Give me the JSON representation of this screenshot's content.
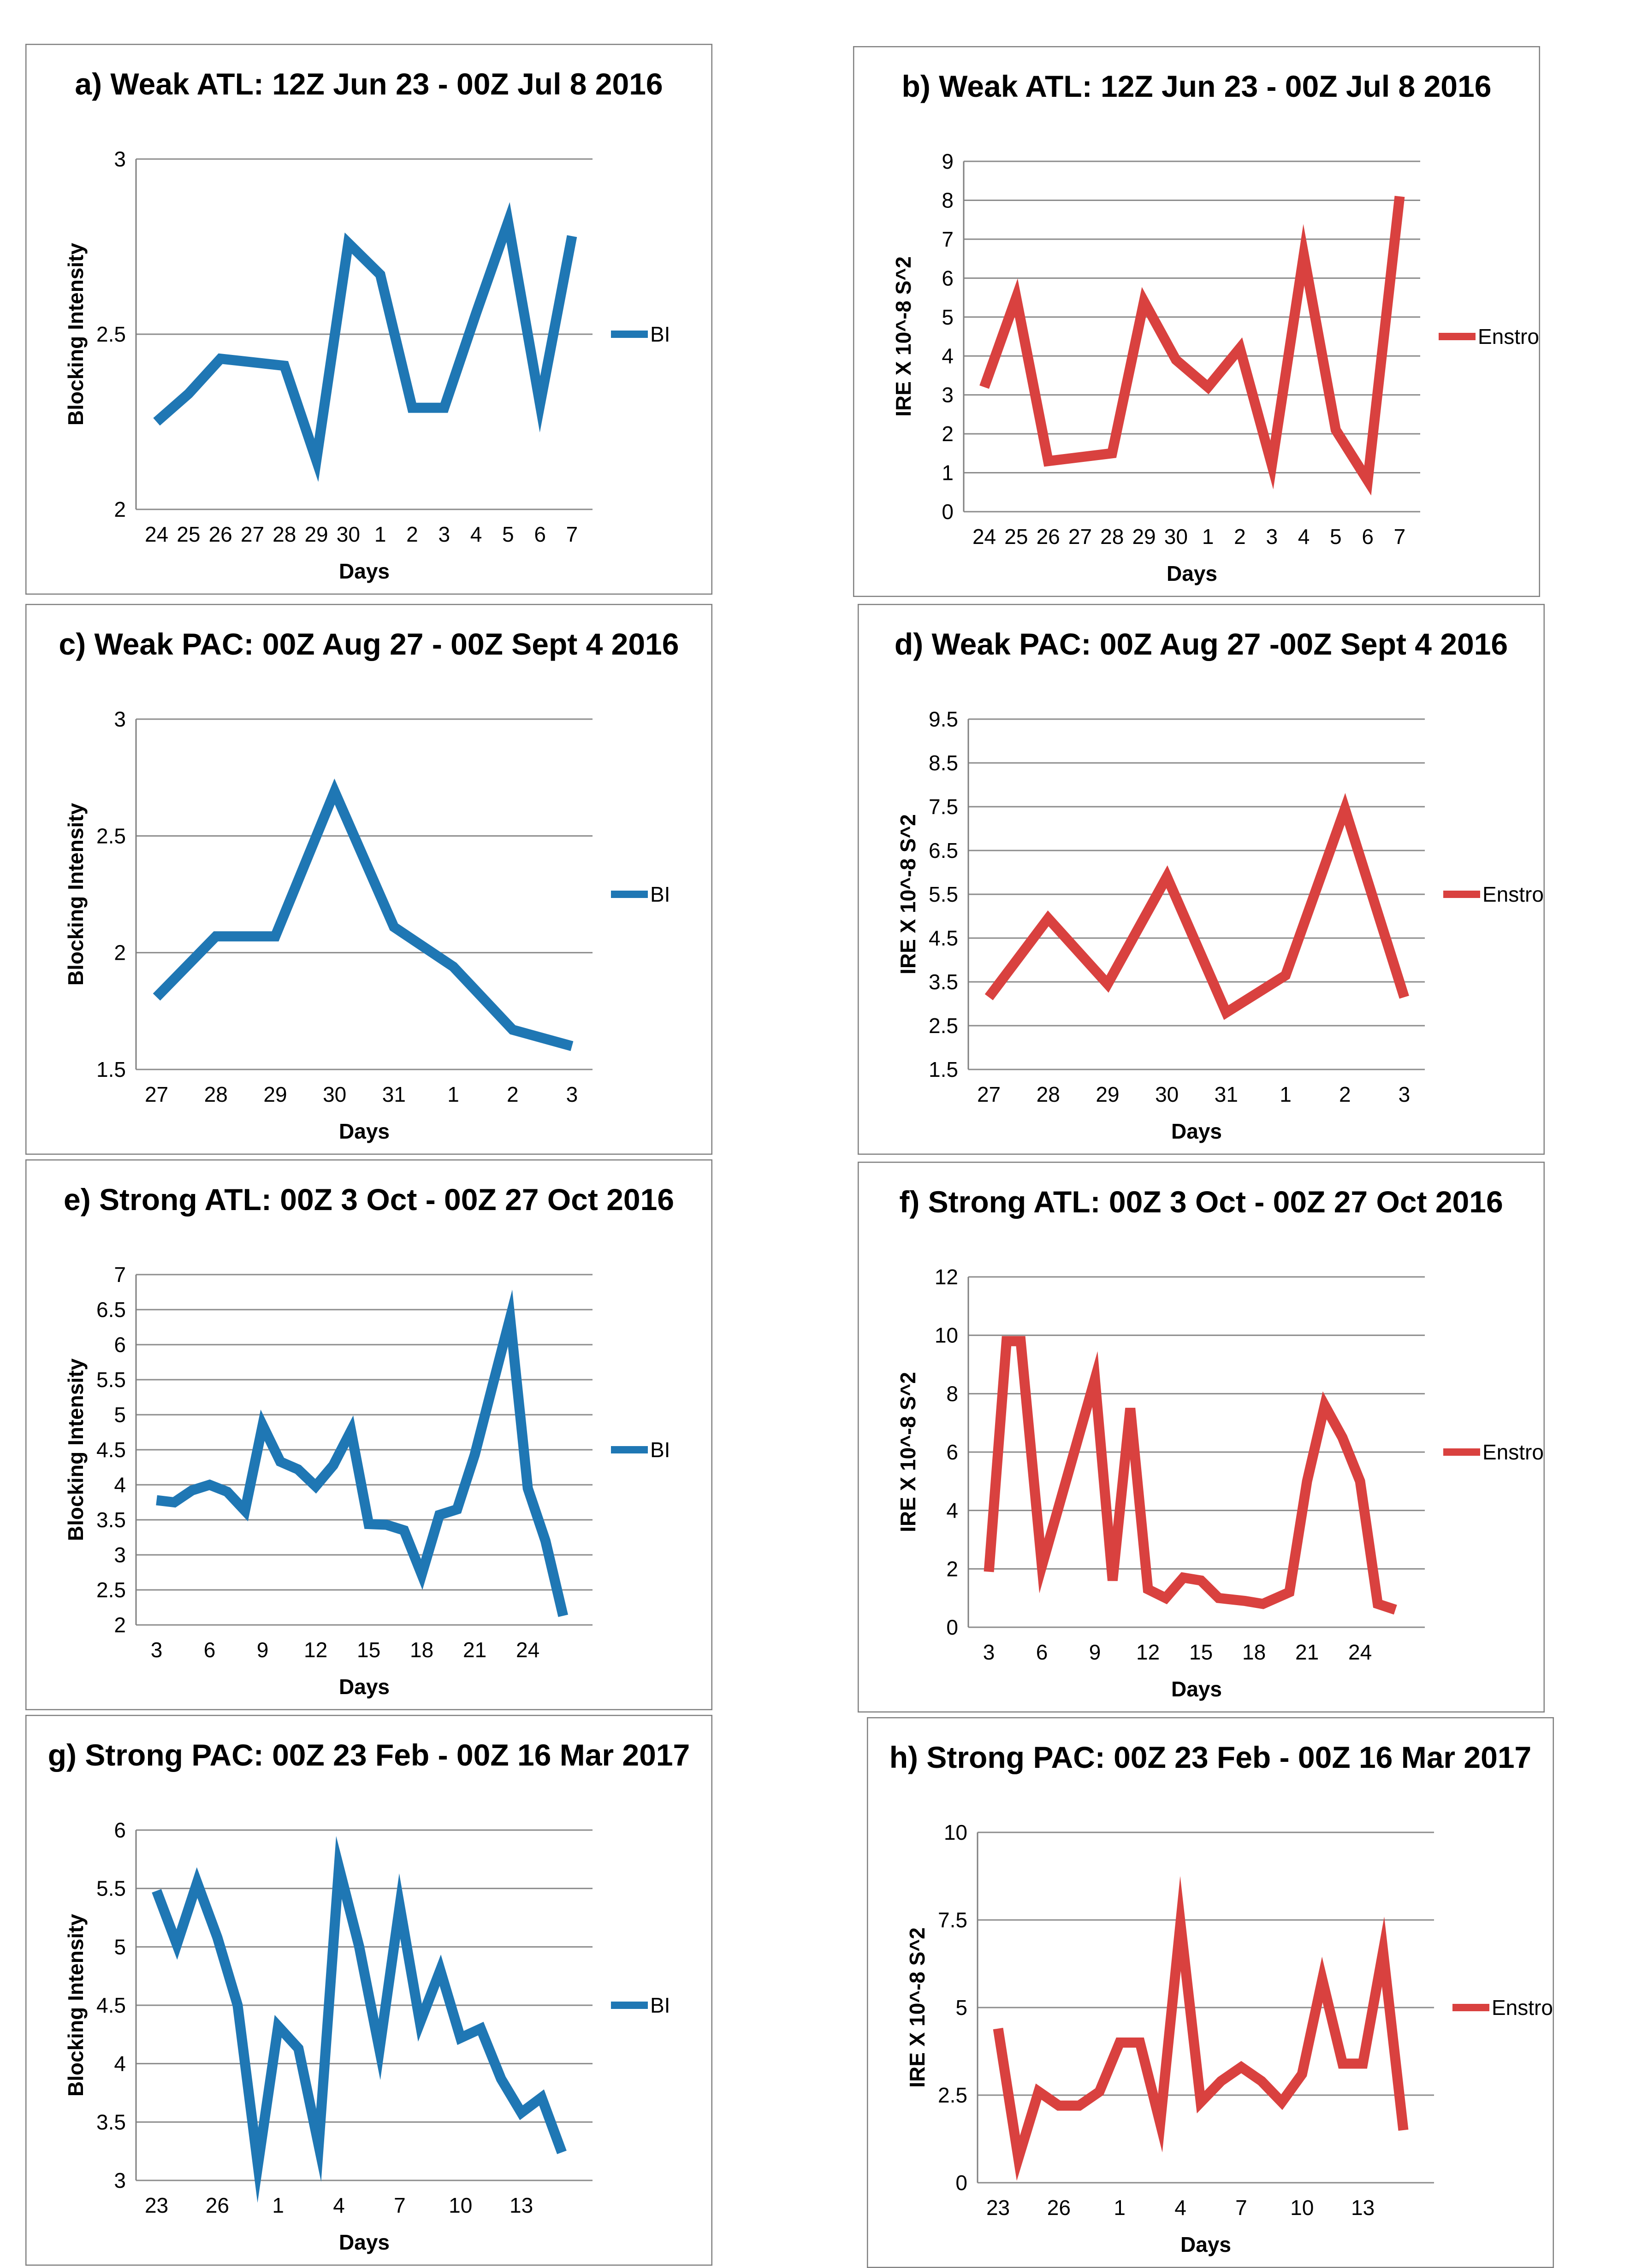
{
  "colors": {
    "bi": "#1f77b4",
    "enstrophy": "#d9413f",
    "grid": "#8c8c8c",
    "axis": "#7f7f7f"
  },
  "chart_data": [
    {
      "id": "a",
      "type": "line",
      "title": "a) Weak ATL: 12Z Jun 23 - 00Z Jul 8 2016",
      "xlabel": "Days",
      "ylabel": "Blocking Intensity",
      "ylim": [
        2,
        3
      ],
      "yticks": [
        "2",
        "2.5",
        "3"
      ],
      "categories": [
        "24",
        "25",
        "26",
        "27",
        "28",
        "29",
        "30",
        "1",
        "2",
        "3",
        "4",
        "5",
        "6",
        "7"
      ],
      "x_values": [
        0,
        1,
        2,
        3,
        4,
        5,
        6,
        7,
        8,
        9,
        10,
        11,
        12,
        13
      ],
      "series": [
        {
          "name": "BI",
          "color": "#1f77b4",
          "x": [
            0,
            1,
            2,
            4,
            5,
            6,
            7,
            8,
            9,
            10,
            11,
            12,
            13
          ],
          "values": [
            2.25,
            2.33,
            2.43,
            2.41,
            2.14,
            2.76,
            2.67,
            2.29,
            2.29,
            2.56,
            2.82,
            2.3,
            2.78
          ]
        }
      ]
    },
    {
      "id": "b",
      "type": "line",
      "title": "b) Weak ATL: 12Z Jun 23 - 00Z Jul 8 2016",
      "xlabel": "Days",
      "ylabel": "IRE  X 10^-8 S^2",
      "ylim": [
        0,
        9
      ],
      "yticks": [
        "0",
        "1",
        "2",
        "3",
        "4",
        "5",
        "6",
        "7",
        "8",
        "9"
      ],
      "categories": [
        "24",
        "25",
        "26",
        "27",
        "28",
        "29",
        "30",
        "1",
        "2",
        "3",
        "4",
        "5",
        "6",
        "7"
      ],
      "x_values": [
        0,
        1,
        2,
        3,
        4,
        5,
        6,
        7,
        8,
        9,
        10,
        11,
        12,
        13
      ],
      "series": [
        {
          "name": "Enstrophy",
          "color": "#d9413f",
          "x": [
            0,
            1,
            2,
            4,
            5,
            6,
            7,
            8,
            9,
            10,
            11,
            12,
            13
          ],
          "values": [
            3.2,
            5.5,
            1.3,
            1.5,
            5.4,
            3.9,
            3.2,
            4.2,
            1.2,
            6.6,
            2.1,
            0.8,
            8.1
          ]
        }
      ]
    },
    {
      "id": "c",
      "type": "line",
      "title": "c) Weak PAC: 00Z Aug 27 - 00Z Sept 4 2016",
      "xlabel": "Days",
      "ylabel": "Blocking Intensity",
      "ylim": [
        1.5,
        3
      ],
      "yticks": [
        "1.5",
        "2",
        "2.5",
        "3"
      ],
      "categories": [
        "27",
        "28",
        "29",
        "30",
        "31",
        "1",
        "2",
        "3"
      ],
      "x_values": [
        0,
        1,
        2,
        3,
        4,
        5,
        6,
        7
      ],
      "series": [
        {
          "name": "BI",
          "color": "#1f77b4",
          "x": [
            0,
            1,
            2,
            3,
            4,
            5,
            6,
            7
          ],
          "values": [
            1.81,
            2.07,
            2.07,
            2.69,
            2.11,
            1.94,
            1.67,
            1.6
          ]
        }
      ]
    },
    {
      "id": "d",
      "type": "line",
      "title": "d) Weak PAC: 00Z Aug 27 -00Z Sept 4 2016",
      "xlabel": "Days",
      "ylabel": "IRE  X 10^-8 S^2",
      "ylim": [
        1.5,
        9.5
      ],
      "yticks": [
        "1.5",
        "2.5",
        "3.5",
        "4.5",
        "5.5",
        "6.5",
        "7.5",
        "8.5",
        "9.5"
      ],
      "categories": [
        "27",
        "28",
        "29",
        "30",
        "31",
        "1",
        "2",
        "3"
      ],
      "x_values": [
        0,
        1,
        2,
        3,
        4,
        5,
        6,
        7
      ],
      "series": [
        {
          "name": "Enstrophy",
          "color": "#d9413f",
          "x": [
            0,
            1,
            2,
            3,
            4,
            5,
            6,
            7
          ],
          "values": [
            3.15,
            4.95,
            3.45,
            5.9,
            2.8,
            3.65,
            7.45,
            3.15
          ]
        }
      ]
    },
    {
      "id": "e",
      "type": "line",
      "title": "e) Strong ATL: 00Z 3 Oct - 00Z 27 Oct 2016",
      "xlabel": "Days",
      "ylabel": "Blocking Intensity",
      "ylim": [
        2,
        7
      ],
      "yticks": [
        "2",
        "2.5",
        "3",
        "3.5",
        "4",
        "4.5",
        "5",
        "5.5",
        "6",
        "6.5",
        "7"
      ],
      "categories": [
        "3",
        "6",
        "9",
        "12",
        "15",
        "18",
        "21",
        "24"
      ],
      "x_values": [
        3,
        6,
        9,
        12,
        15,
        18,
        21,
        24
      ],
      "x_range": [
        3,
        26.5
      ],
      "series": [
        {
          "name": "BI",
          "color": "#1f77b4",
          "x": [
            3,
            4,
            5,
            6,
            7,
            8,
            9,
            10,
            11,
            12,
            13,
            14,
            15,
            16,
            17,
            18,
            19,
            20,
            21,
            22,
            23,
            24,
            25,
            26
          ],
          "values": [
            3.78,
            3.75,
            3.92,
            4.0,
            3.9,
            3.63,
            4.85,
            4.33,
            4.22,
            3.98,
            4.28,
            4.77,
            3.44,
            3.43,
            3.35,
            2.72,
            3.57,
            3.65,
            4.43,
            5.41,
            6.38,
            3.95,
            3.2,
            2.13
          ]
        }
      ]
    },
    {
      "id": "f",
      "type": "line",
      "title": "f) Strong ATL: 00Z 3 Oct - 00Z 27 Oct 2016",
      "xlabel": "Days",
      "ylabel": "IRE  X 10^-8 S^2",
      "ylim": [
        0,
        12
      ],
      "yticks": [
        "0",
        "2",
        "4",
        "6",
        "8",
        "10",
        "12"
      ],
      "categories": [
        "3",
        "6",
        "9",
        "12",
        "15",
        "18",
        "21",
        "24"
      ],
      "x_values": [
        3,
        6,
        9,
        12,
        15,
        18,
        21,
        24
      ],
      "x_range": [
        3,
        26.5
      ],
      "series": [
        {
          "name": "Enstrophy",
          "color": "#d9413f",
          "x": [
            3,
            4,
            4.8,
            6,
            7.5,
            9,
            10,
            11,
            12,
            13,
            14,
            15,
            16,
            17.5,
            18.5,
            20,
            21,
            22,
            23,
            24,
            25,
            26
          ],
          "values": [
            1.9,
            9.8,
            9.8,
            2.1,
            5.3,
            8.5,
            1.6,
            7.5,
            1.3,
            1.0,
            1.7,
            1.6,
            1.0,
            0.9,
            0.8,
            1.2,
            5.0,
            7.6,
            6.5,
            5.0,
            0.8,
            0.6
          ]
        }
      ]
    },
    {
      "id": "g",
      "type": "line",
      "title": "g) Strong PAC: 00Z 23 Feb - 00Z 16 Mar 2017",
      "xlabel": "Days",
      "ylabel": "Blocking Intensity",
      "ylim": [
        3,
        6
      ],
      "yticks": [
        "3",
        "3.5",
        "4",
        "4.5",
        "5",
        "5.5",
        "6"
      ],
      "categories": [
        "23",
        "26",
        "1",
        "4",
        "7",
        "10",
        "13"
      ],
      "x_values": [
        0,
        3,
        6,
        9,
        12,
        15,
        18
      ],
      "x_range": [
        0,
        20.5
      ],
      "series": [
        {
          "name": "BI",
          "color": "#1f77b4",
          "x": [
            0,
            1,
            2,
            3,
            4,
            5,
            6,
            7,
            8,
            9,
            10,
            11,
            12,
            13,
            14,
            15,
            16,
            17,
            18,
            19,
            20
          ],
          "values": [
            5.48,
            5.02,
            5.55,
            5.08,
            4.5,
            3.13,
            4.32,
            4.13,
            3.3,
            5.68,
            5.0,
            4.12,
            5.35,
            4.35,
            4.8,
            4.22,
            4.3,
            3.87,
            3.58,
            3.71,
            3.24
          ]
        }
      ]
    },
    {
      "id": "h",
      "type": "line",
      "title": "h) Strong PAC: 00Z 23 Feb - 00Z 16 Mar 2017",
      "xlabel": "Days",
      "ylabel": "IRE  X 10^-8 S^2",
      "ylim": [
        0,
        10
      ],
      "yticks": [
        "0",
        "2.5",
        "5",
        "7.5",
        "10"
      ],
      "categories": [
        "23",
        "26",
        "1",
        "4",
        "7",
        "10",
        "13"
      ],
      "x_values": [
        0,
        3,
        6,
        9,
        12,
        15,
        18
      ],
      "x_range": [
        0,
        20.5
      ],
      "series": [
        {
          "name": "Enstrophy",
          "color": "#d9413f",
          "x": [
            0,
            1,
            2,
            3,
            4,
            5,
            6,
            7,
            8,
            9,
            10,
            11,
            12,
            13,
            14,
            15,
            16,
            17,
            18,
            19,
            20
          ],
          "values": [
            4.4,
            0.7,
            2.6,
            2.2,
            2.2,
            2.6,
            4.0,
            4.0,
            1.7,
            7.4,
            2.3,
            2.9,
            3.3,
            2.9,
            2.3,
            3.1,
            5.8,
            3.4,
            3.4,
            6.6,
            1.5
          ]
        }
      ]
    }
  ]
}
